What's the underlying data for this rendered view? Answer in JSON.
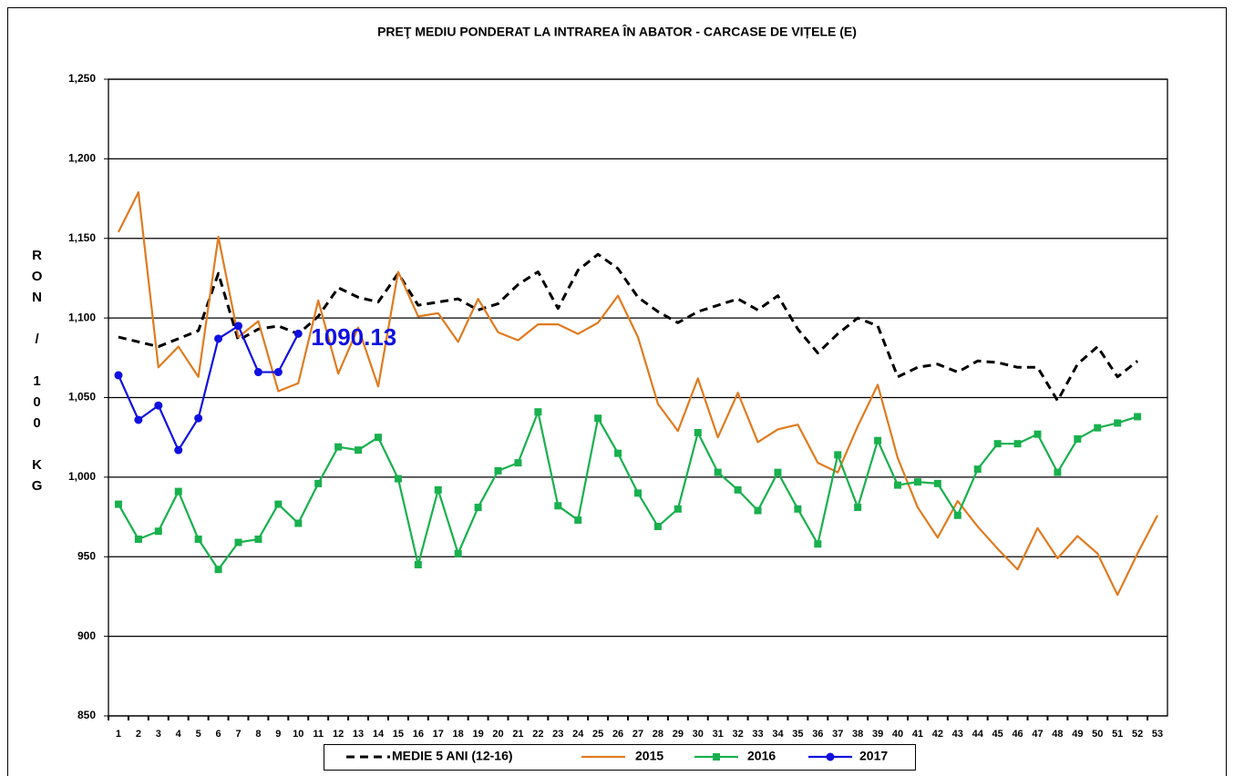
{
  "chart_data": {
    "type": "line",
    "title": "PREŢ MEDIU PONDERAT LA INTRAREA ÎN ABATOR - CARCASE DE VIȚELE (E)",
    "y_label": "RON / 100 KG",
    "categories": [
      "1",
      "2",
      "3",
      "4",
      "5",
      "6",
      "7",
      "8",
      "9",
      "10",
      "11",
      "12",
      "13",
      "14",
      "15",
      "16",
      "17",
      "18",
      "19",
      "20",
      "21",
      "22",
      "23",
      "24",
      "25",
      "26",
      "27",
      "28",
      "29",
      "30",
      "31",
      "32",
      "33",
      "34",
      "35",
      "36",
      "37",
      "38",
      "39",
      "40",
      "41",
      "42",
      "43",
      "44",
      "45",
      "46",
      "47",
      "48",
      "49",
      "50",
      "51",
      "52",
      "53"
    ],
    "ylim": [
      850,
      1250
    ],
    "yticks": [
      {
        "value": 850,
        "label": "850"
      },
      900,
      950,
      {
        "value": 1000,
        "label": "1,000"
      },
      {
        "value": 1050,
        "label": "1,050"
      },
      {
        "value": 1100,
        "label": "1,100"
      },
      {
        "value": 1150,
        "label": "1,150"
      },
      {
        "value": 1200,
        "label": "1,200"
      },
      {
        "value": 1250,
        "label": "1,250"
      }
    ],
    "grid": true,
    "series": [
      {
        "name": "MEDIE 5 ANI (12-16)",
        "color": "#000000",
        "dash": true,
        "marker": "none",
        "values": [
          1088,
          1085,
          1082,
          1087,
          1092,
          1128,
          1086,
          1093,
          1095,
          1090,
          1101,
          1119,
          1113,
          1110,
          1128,
          1108,
          1110,
          1112,
          1105,
          1109,
          1121,
          1129,
          1106,
          1130,
          1140,
          1131,
          1113,
          1104,
          1097,
          1104,
          1108,
          1112,
          1105,
          1114,
          1093,
          1078,
          1090,
          1100,
          1095,
          1063,
          1069,
          1071,
          1066,
          1073,
          1072,
          1069,
          1069,
          1048,
          1071,
          1082,
          1063,
          1073,
          null
        ]
      },
      {
        "name": "2015",
        "color": "#e07b20",
        "dash": false,
        "marker": "none",
        "values": [
          1154,
          1179,
          1069,
          1082,
          1063,
          1151,
          1088,
          1098,
          1054,
          1059,
          1111,
          1065,
          1094,
          1057,
          1129,
          1101,
          1103,
          1085,
          1112,
          1091,
          1086,
          1096,
          1096,
          1090,
          1097,
          1114,
          1088,
          1046,
          1029,
          1062,
          1025,
          1053,
          1022,
          1030,
          1033,
          1009,
          1003,
          1032,
          1058,
          1012,
          981,
          962,
          985,
          969,
          955,
          942,
          968,
          949,
          963,
          952,
          926,
          952,
          976
        ]
      },
      {
        "name": "2016",
        "color": "#19b04e",
        "dash": false,
        "marker": "square",
        "values": [
          983,
          961,
          966,
          991,
          961,
          942,
          959,
          961,
          983,
          971,
          996,
          1019,
          1017,
          1025,
          999,
          945,
          992,
          952,
          981,
          1004,
          1009,
          1041,
          982,
          973,
          1037,
          1015,
          990,
          969,
          980,
          1028,
          1003,
          992,
          979,
          1003,
          980,
          958,
          1014,
          981,
          1023,
          995,
          997,
          996,
          976,
          1005,
          1021,
          1021,
          1027,
          1003,
          1024,
          1031,
          1034,
          1038,
          null
        ]
      },
      {
        "name": "2017",
        "color": "#1010e0",
        "dash": false,
        "marker": "circle",
        "values": [
          1064,
          1036,
          1045,
          1017,
          1037,
          1087,
          1095,
          1066,
          1066,
          1090.13,
          null,
          null,
          null,
          null,
          null,
          null,
          null,
          null,
          null,
          null,
          null,
          null,
          null,
          null,
          null,
          null,
          null,
          null,
          null,
          null,
          null,
          null,
          null,
          null,
          null,
          null,
          null,
          null,
          null,
          null,
          null,
          null,
          null,
          null,
          null,
          null,
          null,
          null,
          null,
          null,
          null,
          null,
          null
        ]
      }
    ]
  }
}
